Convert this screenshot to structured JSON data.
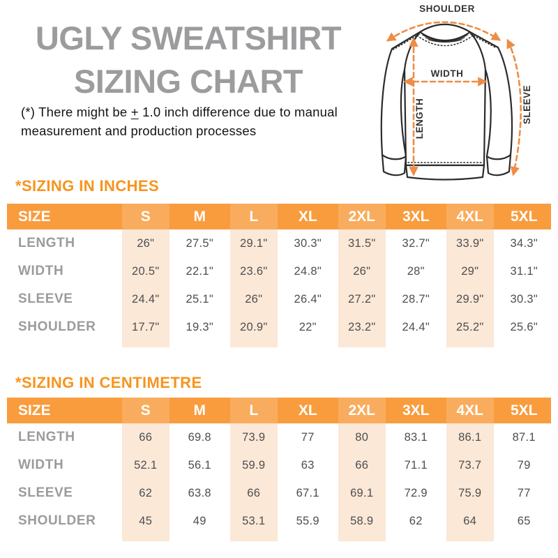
{
  "page": {
    "title_line1": "UGLY SWEATSHIRT",
    "title_line2": "SIZING CHART",
    "note": {
      "prefix": "(*) There might be",
      "plus": "+",
      "suffix": "1.0 inch difference due to manual measurement and production processes"
    }
  },
  "diagram": {
    "labels": {
      "shoulder": "SHOULDER",
      "width": "WIDTH",
      "length": "LENGTH",
      "sleeve": "SLEEVE"
    }
  },
  "tables": {
    "inches": {
      "heading": "*SIZING IN INCHES",
      "columns": [
        "SIZE",
        "S",
        "M",
        "L",
        "XL",
        "2XL",
        "3XL",
        "4XL",
        "5XL"
      ],
      "rows": [
        {
          "label": "LENGTH",
          "values": [
            "26\"",
            "27.5\"",
            "29.1\"",
            "30.3\"",
            "31.5\"",
            "32.7\"",
            "33.9\"",
            "34.3\""
          ]
        },
        {
          "label": "WIDTH",
          "values": [
            "20.5\"",
            "22.1\"",
            "23.6\"",
            "24.8\"",
            "26\"",
            "28\"",
            "29\"",
            "31.1\""
          ]
        },
        {
          "label": "SLEEVE",
          "values": [
            "24.4\"",
            "25.1\"",
            "26\"",
            "26.4\"",
            "27.2\"",
            "28.7\"",
            "29.9\"",
            "30.3\""
          ]
        },
        {
          "label": "SHOULDER",
          "values": [
            "17.7\"",
            "19.3\"",
            "20.9\"",
            "22\"",
            "23.2\"",
            "24.4\"",
            "25.2\"",
            "25.6\""
          ]
        }
      ]
    },
    "centimetre": {
      "heading": "*SIZING IN CENTIMETRE",
      "columns": [
        "SIZE",
        "S",
        "M",
        "L",
        "XL",
        "2XL",
        "3XL",
        "4XL",
        "5XL"
      ],
      "rows": [
        {
          "label": "LENGTH",
          "values": [
            "66",
            "69.8",
            "73.9",
            "77",
            "80",
            "83.1",
            "86.1",
            "87.1"
          ]
        },
        {
          "label": "WIDTH",
          "values": [
            "52.1",
            "56.1",
            "59.9",
            "63",
            "66",
            "71.1",
            "73.7",
            "79"
          ]
        },
        {
          "label": "SLEEVE",
          "values": [
            "62",
            "63.8",
            "66",
            "67.1",
            "69.1",
            "72.9",
            "75.9",
            "77"
          ]
        },
        {
          "label": "SHOULDER",
          "values": [
            "45",
            "49",
            "53.1",
            "55.9",
            "58.9",
            "62",
            "64",
            "65"
          ]
        }
      ]
    }
  },
  "colors": {
    "accent-orange": "#F7941E",
    "header-bar": "#F89C3E",
    "band-peach": "#FBE8D7",
    "title-gray": "#9C9C9E",
    "label-gray": "#9B9B9D",
    "value-dark": "#4E4E50",
    "arrow-orange": "#EE8C45",
    "outline-dark": "#2B2B2B",
    "page-bg": "#FFFFFF"
  }
}
